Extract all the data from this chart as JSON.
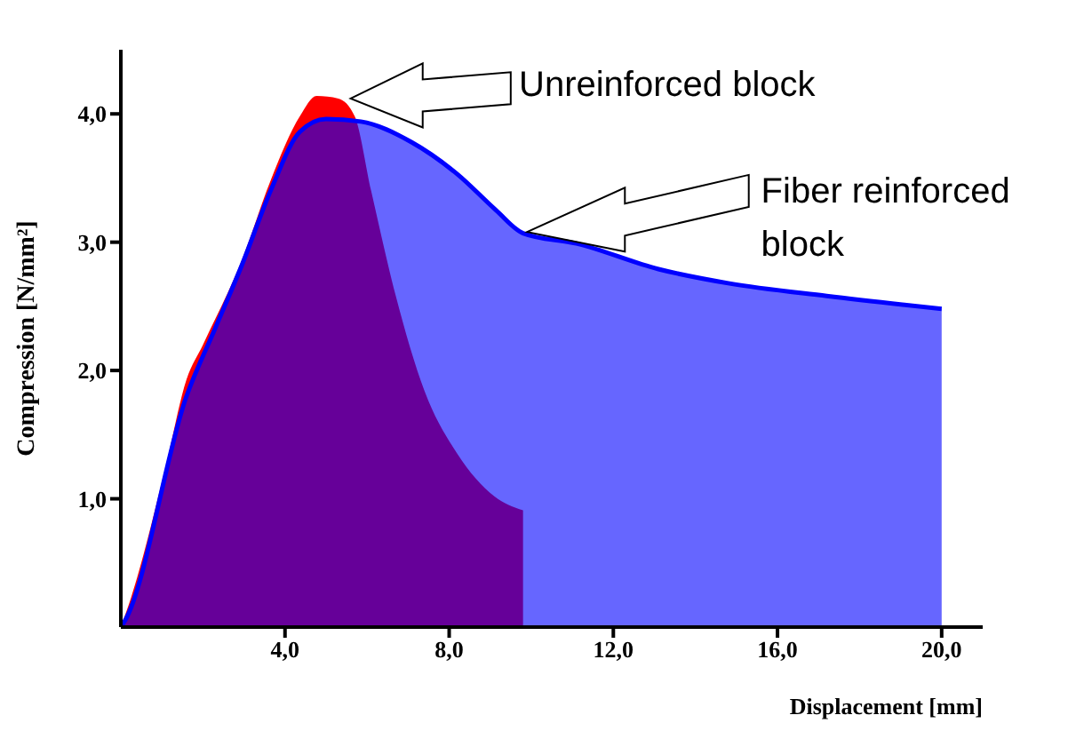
{
  "chart_data": {
    "type": "area",
    "xlabel": "Displacement [mm]",
    "ylabel": "Compression [N/mm²]",
    "xlim": [
      0,
      21
    ],
    "ylim": [
      0,
      4.5
    ],
    "xticks": [
      {
        "value": 4,
        "label": "4,0"
      },
      {
        "value": 8,
        "label": "8,0"
      },
      {
        "value": 12,
        "label": "12,0"
      },
      {
        "value": 16,
        "label": "16,0"
      },
      {
        "value": 20,
        "label": "20,0"
      }
    ],
    "yticks": [
      {
        "value": 1,
        "label": "1,0"
      },
      {
        "value": 2,
        "label": "2,0"
      },
      {
        "value": 3,
        "label": "3,0"
      },
      {
        "value": 4,
        "label": "4,0"
      }
    ],
    "grid": false,
    "legend": false,
    "annotations": [
      "Unreinforced block",
      "Fiber reinforced block"
    ],
    "series": [
      {
        "color": "#ff0000",
        "x": [
          0,
          0.25,
          1.07,
          1.6,
          2.0,
          2.96,
          3.66,
          4.36,
          4.77,
          5.3,
          5.7,
          6.1,
          6.7,
          7.4,
          8.2,
          9.1,
          9.8
        ],
        "values": [
          0,
          0.23,
          1.22,
          1.93,
          2.2,
          2.87,
          3.49,
          3.98,
          4.14,
          4.12,
          3.98,
          3.4,
          2.58,
          1.84,
          1.35,
          1.02,
          0.91
        ]
      },
      {
        "color": "#0000ff",
        "x": [
          0,
          0.1,
          1.6,
          2.3,
          2.96,
          3.66,
          4.36,
          5.0,
          5.85,
          7.08,
          8.2,
          9.14,
          9.8,
          11.1,
          13.1,
          14.8,
          17.2,
          20
        ],
        "values": [
          0,
          0.05,
          1.8,
          2.33,
          2.83,
          3.41,
          3.86,
          3.96,
          3.94,
          3.78,
          3.53,
          3.25,
          3.07,
          2.99,
          2.79,
          2.68,
          2.58,
          2.48
        ]
      }
    ]
  }
}
